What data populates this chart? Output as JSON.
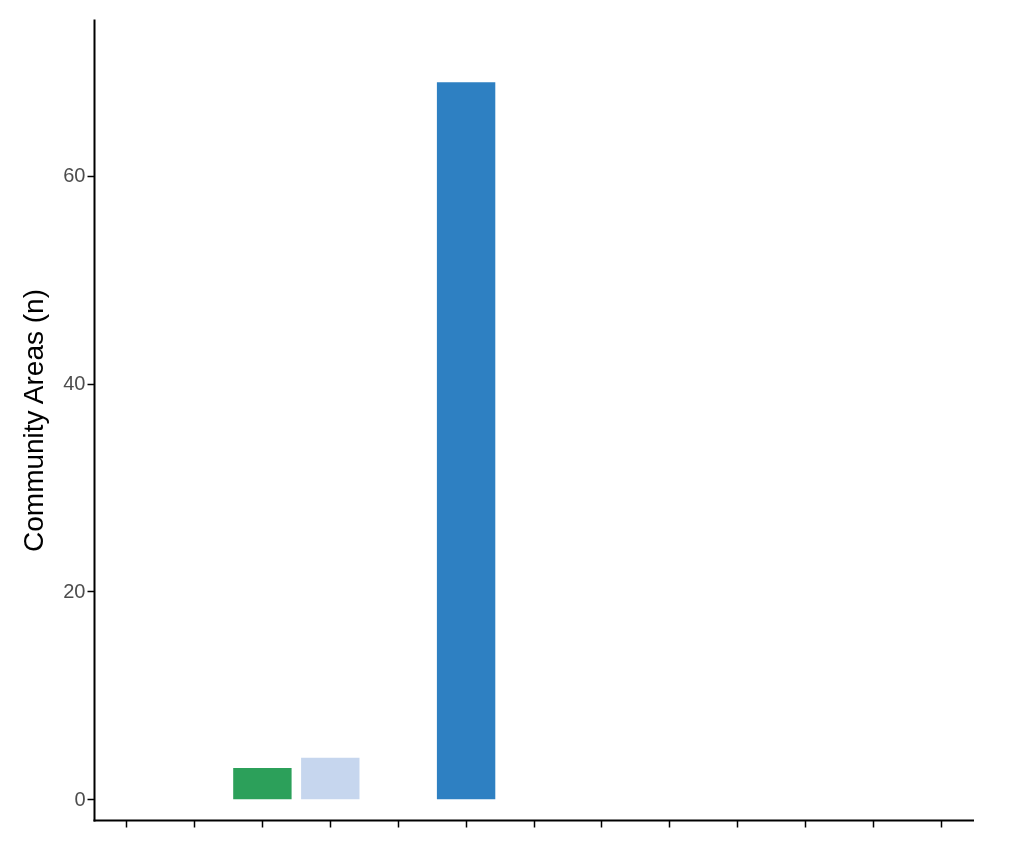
{
  "chart_data": {
    "type": "bar",
    "ylabel": "Community Areas (n)",
    "categories": [
      null,
      null,
      null,
      null,
      null,
      null,
      null,
      null,
      null,
      null,
      null,
      null,
      null
    ],
    "values": [
      null,
      null,
      3,
      4,
      null,
      69,
      null,
      null,
      null,
      null,
      null,
      null,
      null
    ],
    "colors": [
      null,
      null,
      "#2ca05a",
      "#c6d6ee",
      null,
      "#2e80c2",
      null,
      null,
      null,
      null,
      null,
      null,
      null
    ],
    "ylim": [
      -2,
      75
    ],
    "yticks": [
      0,
      20,
      40,
      60
    ],
    "grid": false,
    "tick_labels": "y"
  }
}
